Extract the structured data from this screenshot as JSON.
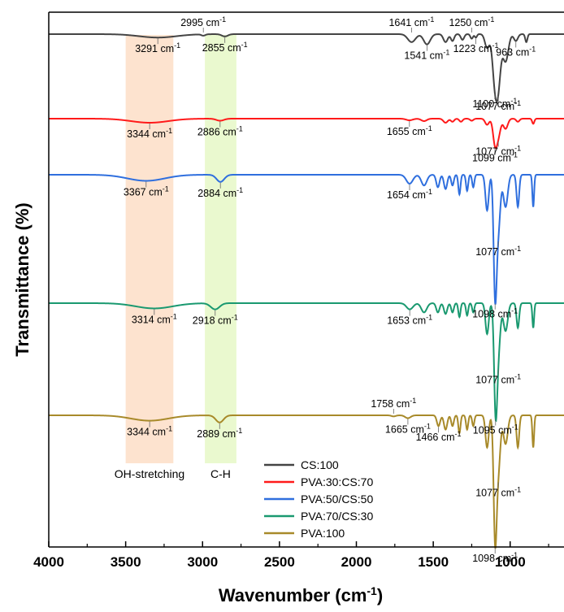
{
  "chart_data": {
    "type": "line",
    "xlabel": "Wavenumber (cm",
    "xlabel_sup": "-1",
    "xlabel_close": ")",
    "ylabel": "Transmittance (%)",
    "xlim": [
      4000,
      650
    ],
    "x_reversed": true,
    "x_ticks": [
      4000,
      3500,
      3000,
      2500,
      2000,
      1500,
      1000
    ],
    "y_ticks_shown": false,
    "grid": false,
    "legend_position": "bottom-center",
    "unit_suffix": "cm",
    "unit_sup": "-1",
    "regions": [
      {
        "name": "OH-stretching",
        "x_start": 3500,
        "x_end": 3190,
        "color": "#fde3cf"
      },
      {
        "name": "C-H",
        "x_start": 2985,
        "x_end": 2780,
        "color": "#eaf9cf"
      }
    ],
    "series": [
      {
        "name": "CS:100",
        "color": "#444444",
        "peaks": [
          {
            "x": 3291,
            "depth": 0.15,
            "width": 170
          },
          {
            "x": 2995,
            "depth": 0.06,
            "width": 18
          },
          {
            "x": 2855,
            "depth": 0.1,
            "width": 28
          },
          {
            "x": 1641,
            "depth": 0.35,
            "width": 35
          },
          {
            "x": 1541,
            "depth": 0.45,
            "width": 30
          },
          {
            "x": 1420,
            "depth": 0.35,
            "width": 20
          },
          {
            "x": 1375,
            "depth": 0.3,
            "width": 15
          },
          {
            "x": 1310,
            "depth": 0.25,
            "width": 15
          },
          {
            "x": 1250,
            "depth": 0.2,
            "width": 12
          },
          {
            "x": 1223,
            "depth": 0.15,
            "width": 10
          },
          {
            "x": 1150,
            "depth": 0.6,
            "width": 20
          },
          {
            "x": 1100,
            "depth": 1.9,
            "width": 22
          },
          {
            "x": 1077,
            "depth": 2.0,
            "width": 22
          },
          {
            "x": 1030,
            "depth": 1.2,
            "width": 25
          },
          {
            "x": 963,
            "depth": 0.3,
            "width": 18
          },
          {
            "x": 895,
            "depth": 0.35,
            "width": 10
          }
        ],
        "annotations": [
          {
            "x": 3291,
            "text": "3291",
            "side": "below"
          },
          {
            "x": 2995,
            "text": "2995",
            "side": "above"
          },
          {
            "x": 2855,
            "text": "2855",
            "side": "below"
          },
          {
            "x": 1641,
            "text": "1641",
            "side": "above"
          },
          {
            "x": 1541,
            "text": "1541",
            "side": "below"
          },
          {
            "x": 1250,
            "text": "1250",
            "side": "above"
          },
          {
            "x": 1223,
            "text": "1223",
            "side": "below"
          },
          {
            "x": 1100,
            "text": "1100",
            "side": "below"
          },
          {
            "x": 1077,
            "text": "1077",
            "side": "below"
          },
          {
            "x": 963,
            "text": "963",
            "side": "below"
          }
        ]
      },
      {
        "name": "PVA:30:CS:70",
        "color": "#ff1a1a",
        "peaks": [
          {
            "x": 3344,
            "depth": 0.2,
            "width": 170
          },
          {
            "x": 2886,
            "depth": 0.1,
            "width": 35
          },
          {
            "x": 1655,
            "depth": 0.08,
            "width": 30
          },
          {
            "x": 1560,
            "depth": 0.12,
            "width": 25
          },
          {
            "x": 1420,
            "depth": 0.2,
            "width": 20
          },
          {
            "x": 1375,
            "depth": 0.15,
            "width": 15
          },
          {
            "x": 1320,
            "depth": 0.15,
            "width": 15
          },
          {
            "x": 1250,
            "depth": 0.1,
            "width": 15
          },
          {
            "x": 1150,
            "depth": 0.3,
            "width": 18
          },
          {
            "x": 1099,
            "depth": 1.15,
            "width": 18
          },
          {
            "x": 1077,
            "depth": 0.8,
            "width": 20
          },
          {
            "x": 1030,
            "depth": 0.5,
            "width": 20
          },
          {
            "x": 950,
            "depth": 0.15,
            "width": 15
          },
          {
            "x": 850,
            "depth": 0.25,
            "width": 10
          }
        ],
        "annotations": [
          {
            "x": 3344,
            "text": "3344",
            "side": "below"
          },
          {
            "x": 2886,
            "text": "2886",
            "side": "below"
          },
          {
            "x": 1655,
            "text": "1655",
            "side": "below"
          },
          {
            "x": 1099,
            "text": "1099",
            "side": "below"
          },
          {
            "x": 1077,
            "text": "1077",
            "side": "below"
          }
        ]
      },
      {
        "name": "PVA:50/CS:50",
        "color": "#2f6fde",
        "peaks": [
          {
            "x": 3367,
            "depth": 0.17,
            "width": 170
          },
          {
            "x": 2884,
            "depth": 0.2,
            "width": 35
          },
          {
            "x": 1654,
            "depth": 0.25,
            "width": 30
          },
          {
            "x": 1560,
            "depth": 0.3,
            "width": 25
          },
          {
            "x": 1470,
            "depth": 0.35,
            "width": 15
          },
          {
            "x": 1420,
            "depth": 0.4,
            "width": 15
          },
          {
            "x": 1375,
            "depth": 0.3,
            "width": 12
          },
          {
            "x": 1330,
            "depth": 0.55,
            "width": 10
          },
          {
            "x": 1280,
            "depth": 0.45,
            "width": 10
          },
          {
            "x": 1240,
            "depth": 0.35,
            "width": 10
          },
          {
            "x": 1150,
            "depth": 1.0,
            "width": 15
          },
          {
            "x": 1098,
            "depth": 3.2,
            "width": 14
          },
          {
            "x": 1077,
            "depth": 1.5,
            "width": 18
          },
          {
            "x": 1030,
            "depth": 0.9,
            "width": 20
          },
          {
            "x": 950,
            "depth": 0.9,
            "width": 12
          },
          {
            "x": 850,
            "depth": 0.9,
            "width": 8
          }
        ],
        "annotations": [
          {
            "x": 3367,
            "text": "3367",
            "side": "below"
          },
          {
            "x": 2884,
            "text": "2884",
            "side": "below"
          },
          {
            "x": 1654,
            "text": "1654",
            "side": "below"
          },
          {
            "x": 1098,
            "text": "1098",
            "side": "below"
          },
          {
            "x": 1077,
            "text": "1077",
            "side": "below"
          }
        ]
      },
      {
        "name": "PVA:70/CS:30",
        "color": "#1a9970",
        "peaks": [
          {
            "x": 3314,
            "depth": 0.17,
            "width": 170
          },
          {
            "x": 2918,
            "depth": 0.2,
            "width": 40
          },
          {
            "x": 1653,
            "depth": 0.2,
            "width": 30
          },
          {
            "x": 1560,
            "depth": 0.3,
            "width": 25
          },
          {
            "x": 1470,
            "depth": 0.3,
            "width": 15
          },
          {
            "x": 1420,
            "depth": 0.35,
            "width": 15
          },
          {
            "x": 1375,
            "depth": 0.3,
            "width": 12
          },
          {
            "x": 1330,
            "depth": 0.45,
            "width": 10
          },
          {
            "x": 1280,
            "depth": 0.4,
            "width": 10
          },
          {
            "x": 1240,
            "depth": 0.3,
            "width": 10
          },
          {
            "x": 1150,
            "depth": 1.0,
            "width": 15
          },
          {
            "x": 1095,
            "depth": 3.2,
            "width": 14
          },
          {
            "x": 1077,
            "depth": 1.5,
            "width": 18
          },
          {
            "x": 1030,
            "depth": 0.9,
            "width": 20
          },
          {
            "x": 950,
            "depth": 0.8,
            "width": 12
          },
          {
            "x": 850,
            "depth": 0.8,
            "width": 8
          }
        ],
        "annotations": [
          {
            "x": 3314,
            "text": "3314",
            "side": "below"
          },
          {
            "x": 2918,
            "text": "2918",
            "side": "below"
          },
          {
            "x": 1653,
            "text": "1653",
            "side": "below"
          },
          {
            "x": 1095,
            "text": "1095",
            "side": "below"
          },
          {
            "x": 1077,
            "text": "1077",
            "side": "below"
          }
        ]
      },
      {
        "name": "PVA:100",
        "color": "#a88a2a",
        "peaks": [
          {
            "x": 3344,
            "depth": 0.15,
            "width": 170
          },
          {
            "x": 2889,
            "depth": 0.2,
            "width": 35
          },
          {
            "x": 1758,
            "depth": 0.03,
            "width": 20
          },
          {
            "x": 1665,
            "depth": 0.08,
            "width": 25
          },
          {
            "x": 1466,
            "depth": 0.3,
            "width": 15
          },
          {
            "x": 1420,
            "depth": 0.4,
            "width": 15
          },
          {
            "x": 1375,
            "depth": 0.3,
            "width": 12
          },
          {
            "x": 1330,
            "depth": 0.5,
            "width": 10
          },
          {
            "x": 1280,
            "depth": 0.4,
            "width": 10
          },
          {
            "x": 1240,
            "depth": 0.3,
            "width": 10
          },
          {
            "x": 1150,
            "depth": 0.9,
            "width": 15
          },
          {
            "x": 1098,
            "depth": 3.3,
            "width": 14
          },
          {
            "x": 1077,
            "depth": 1.5,
            "width": 18
          },
          {
            "x": 1030,
            "depth": 0.8,
            "width": 20
          },
          {
            "x": 950,
            "depth": 0.9,
            "width": 12
          },
          {
            "x": 850,
            "depth": 0.9,
            "width": 8
          }
        ],
        "annotations": [
          {
            "x": 3344,
            "text": "3344",
            "side": "below"
          },
          {
            "x": 2889,
            "text": "2889",
            "side": "below"
          },
          {
            "x": 1758,
            "text": "1758",
            "side": "above"
          },
          {
            "x": 1665,
            "text": "1665",
            "side": "below"
          },
          {
            "x": 1466,
            "text": "1466",
            "side": "below"
          },
          {
            "x": 1098,
            "text": "1098",
            "side": "below"
          },
          {
            "x": 1077,
            "text": "1077",
            "side": "below"
          }
        ]
      }
    ]
  }
}
